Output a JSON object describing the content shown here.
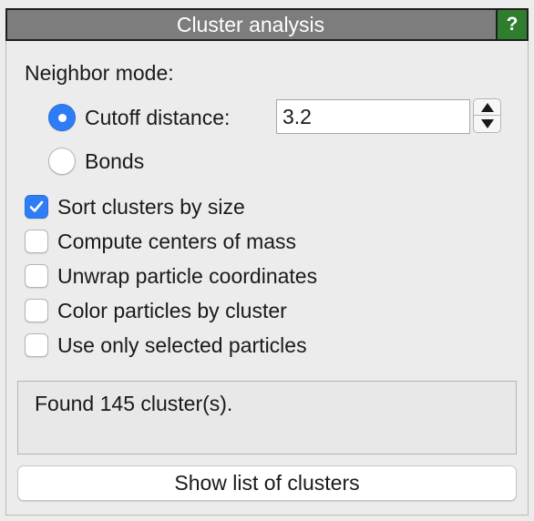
{
  "panel": {
    "title": "Cluster analysis",
    "help_label": "?"
  },
  "neighbor_mode": {
    "heading": "Neighbor mode:",
    "options": [
      {
        "label": "Cutoff distance:",
        "selected": true
      },
      {
        "label": "Bonds",
        "selected": false
      }
    ],
    "cutoff_value": "3.2"
  },
  "options": [
    {
      "label": "Sort clusters by size",
      "checked": true
    },
    {
      "label": "Compute centers of mass",
      "checked": false
    },
    {
      "label": "Unwrap particle coordinates",
      "checked": false
    },
    {
      "label": "Color particles by cluster",
      "checked": false
    },
    {
      "label": "Use only selected particles",
      "checked": false
    }
  ],
  "status": {
    "text": "Found 145 cluster(s)."
  },
  "actions": {
    "show_list_label": "Show list of clusters"
  },
  "colors": {
    "accent": "#2f7df6",
    "help_button": "#2f7d2f",
    "titlebar": "#7d7d7d"
  }
}
